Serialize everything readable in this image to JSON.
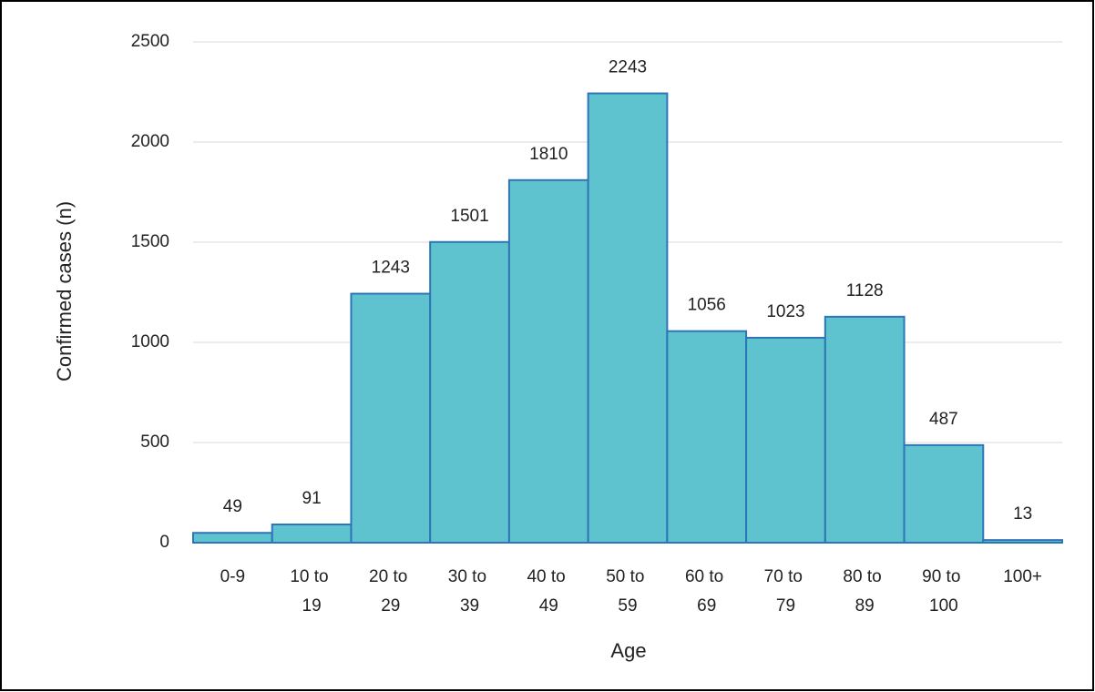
{
  "chart_data": {
    "type": "bar",
    "x_label": "Age",
    "y_label": "Confirmed cases (n)",
    "categories": [
      "0-9",
      "10 to 19",
      "20 to 29",
      "30 to 39",
      "40 to 49",
      "50 to 59",
      "60 to 69",
      "70 to 79",
      "80 to 89",
      "90 to 100",
      "100+"
    ],
    "values": [
      49,
      91,
      1243,
      1501,
      1810,
      2243,
      1056,
      1023,
      1128,
      487,
      13
    ],
    "color": "#5fc3cf",
    "edge_color": "#2e75b6",
    "ylim": [
      0,
      2500
    ],
    "yticks": [
      0,
      500,
      1000,
      1500,
      2000,
      2500
    ],
    "grid": true
  }
}
